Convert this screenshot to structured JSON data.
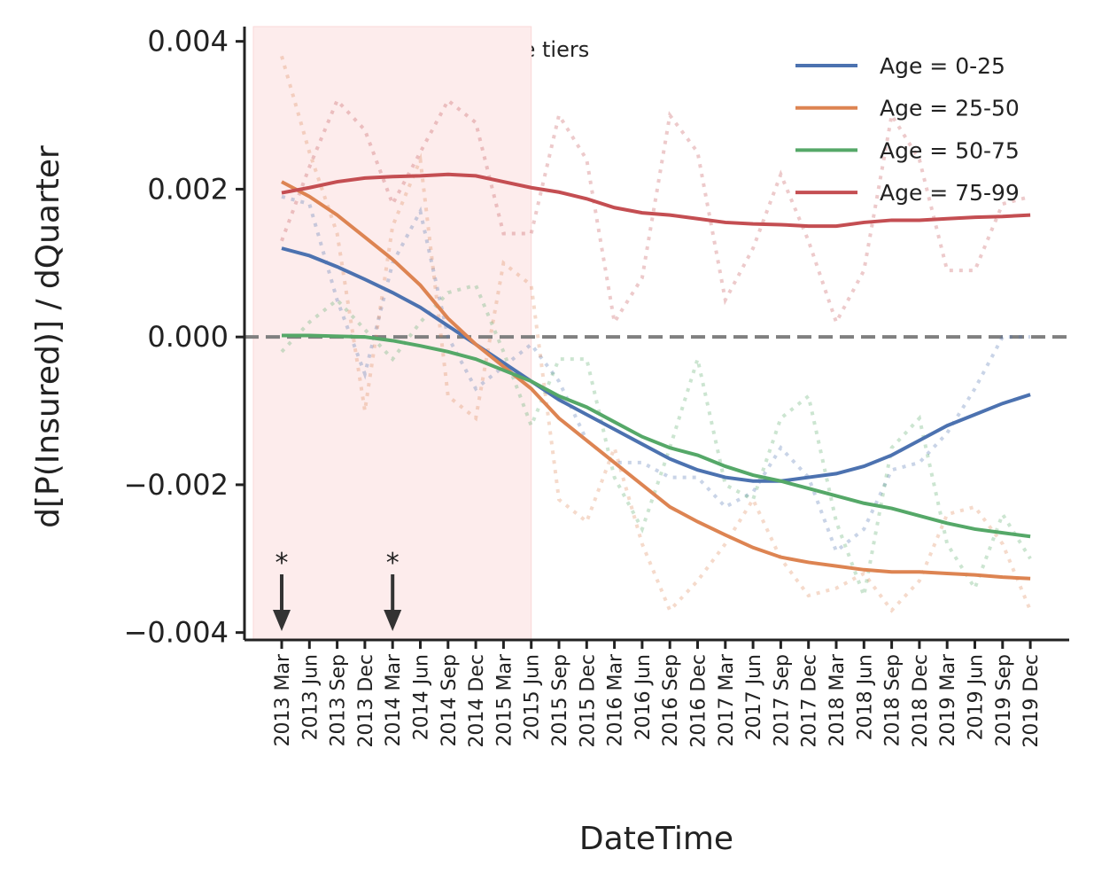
{
  "chart_data": {
    "type": "line",
    "xlabel": "DateTime",
    "ylabel": "d[P(Insured)] / dQuarter",
    "annotation": "* Changes to MC income tiers",
    "categories": [
      "2013 Mar",
      "2013 Jun",
      "2013 Sep",
      "2013 Dec",
      "2014 Mar",
      "2014 Jun",
      "2014 Sep",
      "2014 Dec",
      "2015 Mar",
      "2015 Jun",
      "2015 Sep",
      "2015 Dec",
      "2016 Mar",
      "2016 Jun",
      "2016 Sep",
      "2016 Dec",
      "2017 Mar",
      "2017 Jun",
      "2017 Sep",
      "2017 Dec",
      "2018 Mar",
      "2018 Jun",
      "2018 Sep",
      "2018 Dec",
      "2019 Mar",
      "2019 Jun",
      "2019 Sep",
      "2019 Dec"
    ],
    "series": [
      {
        "name": "Age = 0-25",
        "color": "#4c72b0",
        "values": [
          0.0012,
          0.0011,
          0.00095,
          0.00078,
          0.0006,
          0.0004,
          0.00015,
          -0.0001,
          -0.00035,
          -0.0006,
          -0.00085,
          -0.00105,
          -0.00125,
          -0.00145,
          -0.00165,
          -0.0018,
          -0.0019,
          -0.00195,
          -0.00195,
          -0.0019,
          -0.00185,
          -0.00175,
          -0.0016,
          -0.0014,
          -0.0012,
          -0.00105,
          -0.0009,
          -0.00078
        ]
      },
      {
        "name": "Age = 25-50",
        "color": "#dd8452",
        "values": [
          0.0021,
          0.0019,
          0.00165,
          0.00135,
          0.00105,
          0.0007,
          0.00025,
          -0.0001,
          -0.0004,
          -0.0007,
          -0.0011,
          -0.0014,
          -0.0017,
          -0.002,
          -0.0023,
          -0.0025,
          -0.00268,
          -0.00285,
          -0.00298,
          -0.00305,
          -0.0031,
          -0.00315,
          -0.00318,
          -0.00318,
          -0.0032,
          -0.00322,
          -0.00325,
          -0.00327
        ]
      },
      {
        "name": "Age = 50-75",
        "color": "#55a868",
        "values": [
          2e-05,
          2e-05,
          1e-05,
          0,
          -5e-05,
          -0.00012,
          -0.0002,
          -0.0003,
          -0.00045,
          -0.0006,
          -0.0008,
          -0.00095,
          -0.00115,
          -0.00135,
          -0.0015,
          -0.0016,
          -0.00175,
          -0.00187,
          -0.00195,
          -0.00205,
          -0.00215,
          -0.00225,
          -0.00232,
          -0.00242,
          -0.00252,
          -0.0026,
          -0.00265,
          -0.0027
        ]
      },
      {
        "name": "Age = 75-99",
        "color": "#c44e52",
        "values": [
          0.00195,
          0.00202,
          0.0021,
          0.00215,
          0.00217,
          0.00218,
          0.0022,
          0.00218,
          0.0021,
          0.00202,
          0.00196,
          0.00187,
          0.00175,
          0.00168,
          0.00165,
          0.0016,
          0.00155,
          0.00153,
          0.00152,
          0.0015,
          0.0015,
          0.00155,
          0.00158,
          0.00158,
          0.0016,
          0.00162,
          0.00163,
          0.00165
        ]
      }
    ],
    "raw_series": [
      {
        "color": "#4c72b0",
        "values": [
          0.0019,
          0.0018,
          0.0005,
          -0.0005,
          0.001,
          0.0017,
          0,
          -0.0007,
          -0.0004,
          -0.0001,
          -0.0006,
          -0.0014,
          -0.0017,
          -0.0017,
          -0.0019,
          -0.0019,
          -0.0023,
          -0.0021,
          -0.0015,
          -0.0019,
          -0.0029,
          -0.0026,
          -0.0018,
          -0.0017,
          -0.0013,
          -0.0007,
          0,
          0
        ]
      },
      {
        "color": "#dd8452",
        "values": [
          0.0038,
          0.0025,
          0.0014,
          -0.001,
          0.0015,
          0.0024,
          -0.0008,
          -0.0011,
          0.001,
          0.0007,
          -0.0022,
          -0.0025,
          -0.0015,
          -0.0028,
          -0.0037,
          -0.0033,
          -0.0028,
          -0.0022,
          -0.003,
          -0.0035,
          -0.0034,
          -0.0032,
          -0.0037,
          -0.0033,
          -0.0024,
          -0.0023,
          -0.0028,
          -0.0037
        ]
      },
      {
        "color": "#55a868",
        "values": [
          -0.0002,
          0.0002,
          0.0005,
          0.0001,
          -0.0003,
          0.0002,
          0.0006,
          0.0007,
          -0.0002,
          -0.0012,
          -0.0003,
          -0.0003,
          -0.0019,
          -0.0026,
          -0.0015,
          -0.0003,
          -0.002,
          -0.0022,
          -0.0011,
          -0.0008,
          -0.0025,
          -0.0035,
          -0.0015,
          -0.0011,
          -0.0028,
          -0.0034,
          -0.0024,
          -0.003
        ]
      },
      {
        "color": "#c44e52",
        "values": [
          0.0013,
          0.0023,
          0.0032,
          0.0028,
          0.0018,
          0.0025,
          0.0032,
          0.0029,
          0.0014,
          0.0014,
          0.003,
          0.0024,
          0.0002,
          0.0008,
          0.003,
          0.0025,
          0.0005,
          0.0012,
          0.0022,
          0.0013,
          0.0002,
          0.0009,
          0.003,
          0.0024,
          0.0009,
          0.0009,
          0.0018,
          0.0019
        ]
      }
    ],
    "markers": [
      {
        "category": "2013 Mar",
        "label": "*"
      },
      {
        "category": "2014 Mar",
        "label": "*"
      }
    ],
    "shaded_until": "2015 Jun",
    "shade_color": "#fdecec",
    "hline": 0,
    "ylim": [
      -0.0041,
      0.0042
    ],
    "yticks": [
      {
        "value": -0.004,
        "label": "−0.004"
      },
      {
        "value": -0.002,
        "label": "−0.002"
      },
      {
        "value": 0,
        "label": "0.000"
      },
      {
        "value": 0.002,
        "label": "0.002"
      },
      {
        "value": 0.004,
        "label": "0.004"
      }
    ],
    "legend": "upper right",
    "grid": false
  }
}
